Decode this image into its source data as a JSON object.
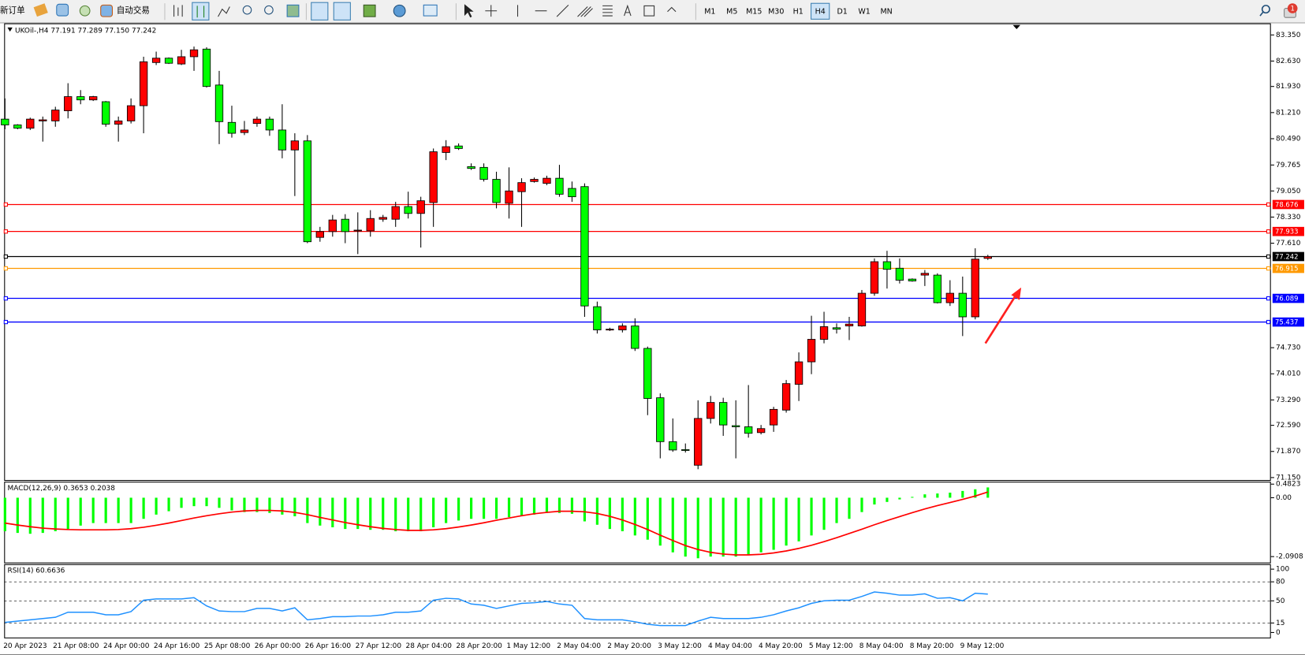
{
  "toolbar": {
    "new_order": "新订单",
    "auto_trading": "自动交易",
    "timeframes": [
      "M1",
      "M5",
      "M15",
      "M30",
      "H1",
      "H4",
      "D1",
      "W1",
      "MN"
    ],
    "active_timeframe": 5,
    "notifications": 1
  },
  "chart_data": [
    {
      "type": "candlestick",
      "title": "UKOil-,H4  77.191 77.289 77.150 77.242",
      "categories": [
        "20 Apr 2023",
        null,
        null,
        null,
        "21 Apr 08:00",
        null,
        null,
        null,
        "24 Apr 00:00",
        null,
        null,
        null,
        "24 Apr 16:00",
        null,
        null,
        null,
        "25 Apr 08:00",
        null,
        null,
        null,
        "26 Apr 00:00",
        null,
        null,
        null,
        "26 Apr 16:00",
        null,
        null,
        null,
        "27 Apr 12:00",
        null,
        null,
        null,
        "28 Apr 04:00",
        null,
        null,
        null,
        "28 Apr 20:00",
        null,
        null,
        null,
        "1 May 12:00",
        null,
        null,
        null,
        "2 May 04:00",
        null,
        null,
        null,
        "2 May 20:00",
        null,
        null,
        null,
        "3 May 12:00",
        null,
        null,
        null,
        "4 May 04:00",
        null,
        null,
        null,
        "4 May 20:00",
        null,
        null,
        null,
        "5 May 12:00",
        null,
        null,
        null,
        "8 May 04:00",
        null,
        null,
        null,
        "8 May 20:00",
        null,
        null,
        null,
        "9 May 12:00",
        null,
        null
      ],
      "open": [
        81.03,
        80.87,
        80.78,
        80.98,
        80.98,
        81.26,
        81.65,
        81.56,
        81.51,
        80.89,
        80.98,
        81.4,
        82.59,
        82.71,
        82.55,
        82.75,
        82.96,
        81.97,
        80.94,
        80.66,
        80.91,
        81.03,
        80.73,
        80.18,
        80.43,
        77.77,
        77.93,
        78.27,
        77.95,
        77.95,
        78.27,
        78.27,
        78.62,
        78.43,
        78.73,
        80.11,
        80.29,
        79.72,
        79.7,
        79.37,
        78.71,
        79.03,
        79.31,
        79.26,
        79.4,
        79.12,
        79.17,
        75.86,
        75.23,
        75.22,
        75.33,
        74.71,
        73.35,
        72.14,
        71.92,
        71.49,
        72.78,
        73.22,
        72.58,
        72.55,
        72.39,
        72.6,
        73.01,
        73.72,
        74.34,
        74.96,
        75.28,
        75.33,
        75.33,
        76.23,
        77.1,
        76.92,
        76.62,
        76.73,
        76.73,
        75.97,
        76.23,
        75.58,
        77.191
      ],
      "high": [
        81.6,
        80.89,
        81.07,
        81.1,
        81.37,
        82.02,
        81.83,
        81.67,
        81.53,
        81.1,
        81.6,
        82.75,
        82.89,
        82.73,
        82.94,
        83.03,
        83.01,
        82.36,
        81.4,
        80.98,
        81.1,
        81.1,
        81.44,
        80.64,
        80.59,
        78.06,
        78.39,
        78.41,
        78.46,
        78.52,
        78.39,
        78.75,
        79.03,
        78.89,
        80.22,
        80.45,
        80.36,
        79.81,
        79.81,
        79.58,
        79.7,
        79.4,
        79.42,
        79.47,
        79.77,
        79.31,
        79.26,
        76.0,
        75.28,
        75.4,
        75.54,
        74.76,
        73.47,
        72.78,
        72.09,
        73.28,
        73.4,
        73.35,
        73.28,
        73.7,
        72.6,
        73.1,
        73.84,
        74.6,
        75.61,
        75.72,
        75.4,
        75.58,
        76.32,
        77.19,
        77.4,
        77.19,
        76.64,
        76.87,
        76.78,
        76.59,
        76.69,
        77.47,
        77.289
      ],
      "low": [
        80.75,
        80.75,
        80.73,
        80.41,
        80.82,
        81.05,
        81.44,
        81.53,
        80.82,
        80.41,
        80.91,
        80.64,
        82.52,
        82.55,
        82.52,
        82.36,
        81.9,
        80.34,
        80.52,
        80.59,
        80.82,
        80.57,
        79.95,
        78.91,
        77.61,
        77.65,
        77.79,
        77.61,
        77.31,
        77.79,
        78.2,
        78.06,
        78.29,
        77.49,
        78.06,
        79.9,
        80.18,
        79.63,
        79.31,
        78.57,
        78.29,
        78.06,
        79.28,
        79.21,
        78.89,
        78.75,
        75.58,
        75.12,
        75.19,
        75.15,
        74.64,
        72.87,
        71.68,
        71.86,
        71.84,
        71.38,
        72.64,
        72.3,
        71.68,
        72.25,
        72.34,
        72.41,
        72.94,
        73.26,
        74.0,
        74.85,
        75.12,
        74.94,
        75.31,
        76.16,
        76.36,
        76.5,
        76.55,
        76.43,
        75.95,
        75.88,
        75.05,
        75.51,
        77.15
      ],
      "close": [
        80.87,
        80.78,
        81.03,
        81.01,
        81.28,
        81.65,
        81.56,
        81.65,
        80.89,
        80.98,
        81.4,
        82.61,
        82.71,
        82.57,
        82.75,
        82.94,
        81.93,
        80.96,
        80.64,
        80.73,
        81.03,
        80.73,
        80.18,
        80.43,
        77.65,
        77.93,
        78.25,
        77.93,
        77.97,
        78.29,
        78.32,
        78.62,
        78.43,
        78.78,
        80.13,
        80.27,
        80.22,
        79.67,
        79.37,
        78.73,
        79.05,
        79.28,
        79.37,
        79.4,
        78.96,
        78.89,
        75.88,
        75.22,
        75.24,
        75.33,
        74.71,
        73.33,
        72.14,
        71.91,
        71.9,
        72.78,
        73.22,
        72.6,
        72.55,
        72.37,
        72.5,
        73.03,
        73.74,
        74.34,
        74.96,
        75.31,
        75.24,
        75.38,
        76.23,
        77.1,
        76.89,
        76.59,
        76.57,
        76.78,
        75.97,
        76.23,
        75.58,
        77.17,
        77.242
      ],
      "up_color": "#ff0000",
      "down_color": "#00ff00",
      "ylim": [
        71.06,
        83.67
      ],
      "yticks": [
        {
          "value": 83.35,
          "label": "83.350"
        },
        {
          "value": 82.63,
          "label": "82.630"
        },
        {
          "value": 81.93,
          "label": "81.930"
        },
        {
          "value": 81.21,
          "label": "81.210"
        },
        {
          "value": 80.49,
          "label": "80.490"
        },
        79.765,
        {
          "value": 79.05,
          "label": "79.050"
        },
        {
          "value": 78.33,
          "label": "78.330"
        },
        {
          "value": 77.61,
          "label": "77.610"
        },
        {
          "value": 74.73,
          "label": "74.730"
        },
        {
          "value": 74.01,
          "label": "74.010"
        },
        {
          "value": 73.29,
          "label": "73.290"
        },
        {
          "value": 72.59,
          "label": "72.590"
        },
        {
          "value": 71.87,
          "label": "71.870"
        },
        {
          "value": 71.15,
          "label": "71.150"
        }
      ],
      "hlines": [
        {
          "value": 78.676,
          "color": "#ff0000"
        },
        {
          "value": 77.933,
          "color": "#ff0000"
        },
        {
          "value": 77.242,
          "color": "#000000"
        },
        {
          "value": 76.915,
          "color": "#ff9900"
        },
        {
          "value": 76.089,
          "color": "#0000ff"
        },
        {
          "value": 75.437,
          "color": "#0000ff"
        }
      ]
    },
    {
      "type": "bar",
      "title": "MACD(12,26,9) 0.3653 0.2038",
      "color": "#00ff00",
      "values": [
        -1.19,
        -1.25,
        -1.28,
        -1.25,
        -1.19,
        -1.11,
        -0.99,
        -0.9,
        -0.9,
        -0.9,
        -0.9,
        -0.75,
        -0.6,
        -0.48,
        -0.36,
        -0.3,
        -0.3,
        -0.36,
        -0.45,
        -0.51,
        -0.51,
        -0.54,
        -0.6,
        -0.66,
        -0.9,
        -0.99,
        -1.05,
        -1.11,
        -1.11,
        -1.14,
        -1.14,
        -1.19,
        -1.19,
        -1.19,
        -1.05,
        -0.9,
        -0.81,
        -0.75,
        -0.75,
        -0.75,
        -0.69,
        -0.66,
        -0.6,
        -0.54,
        -0.54,
        -0.57,
        -0.84,
        -0.96,
        -1.11,
        -1.19,
        -1.34,
        -1.49,
        -1.7,
        -1.94,
        -2.09,
        -2.15,
        -2.09,
        -2.09,
        -2.09,
        -2.03,
        -1.94,
        -1.85,
        -1.7,
        -1.55,
        -1.34,
        -1.14,
        -0.9,
        -0.75,
        -0.51,
        -0.24,
        -0.15,
        -0.06,
        0.03,
        0.12,
        0.15,
        0.18,
        0.24,
        0.3,
        0.3653
      ],
      "signal": {
        "color": "#ff0000",
        "values": [
          -0.9,
          -0.97,
          -1.03,
          -1.08,
          -1.11,
          -1.13,
          -1.14,
          -1.14,
          -1.14,
          -1.13,
          -1.1,
          -1.05,
          -0.98,
          -0.9,
          -0.81,
          -0.72,
          -0.64,
          -0.57,
          -0.51,
          -0.47,
          -0.45,
          -0.45,
          -0.47,
          -0.52,
          -0.6,
          -0.7,
          -0.79,
          -0.88,
          -0.96,
          -1.03,
          -1.09,
          -1.13,
          -1.16,
          -1.16,
          -1.14,
          -1.1,
          -1.04,
          -0.97,
          -0.89,
          -0.8,
          -0.72,
          -0.64,
          -0.57,
          -0.52,
          -0.48,
          -0.48,
          -0.5,
          -0.56,
          -0.66,
          -0.79,
          -0.95,
          -1.13,
          -1.33,
          -1.52,
          -1.7,
          -1.84,
          -1.94,
          -2.0,
          -2.03,
          -2.03,
          -2.01,
          -1.96,
          -1.89,
          -1.8,
          -1.69,
          -1.56,
          -1.42,
          -1.27,
          -1.12,
          -0.96,
          -0.81,
          -0.67,
          -0.53,
          -0.4,
          -0.28,
          -0.17,
          -0.06,
          0.06,
          0.2038
        ]
      },
      "ylim": [
        -2.33,
        0.57
      ],
      "yticks": [
        0.4823,
        {
          "value": 0,
          "label": "0.00"
        },
        -2.0908
      ]
    },
    {
      "type": "line",
      "title": "RSI(14) 60.6636",
      "color": "#1e90ff",
      "values": [
        16,
        18,
        20,
        22,
        24,
        32,
        32,
        32,
        28,
        28,
        33,
        51,
        53,
        53,
        53,
        55,
        42,
        34,
        33,
        33,
        38,
        38,
        34,
        39,
        20,
        22,
        25,
        25,
        26,
        26,
        28,
        32,
        32,
        34,
        51,
        54,
        53,
        45,
        43,
        38,
        42,
        46,
        47,
        49,
        45,
        43,
        22,
        20,
        20,
        20,
        17,
        13,
        11,
        11,
        11,
        18,
        24,
        22,
        22,
        22,
        24,
        28,
        34,
        39,
        46,
        50,
        51,
        51,
        57,
        64,
        62,
        59,
        59,
        61,
        54,
        55,
        50,
        62,
        60.6636
      ],
      "ylim": [
        0,
        100
      ],
      "yticks": [
        100,
        80,
        50,
        15,
        0
      ],
      "grid": true
    }
  ]
}
